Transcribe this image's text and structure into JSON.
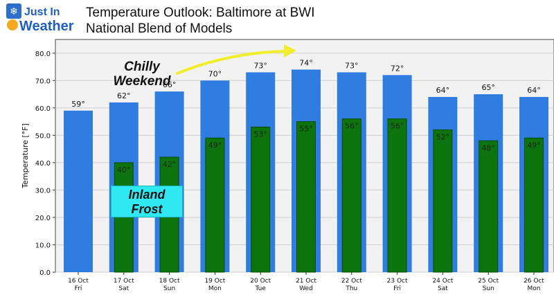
{
  "logo": {
    "line1": "Just In",
    "line2": "Weather"
  },
  "header": {
    "title": "Temperature Outlook: Baltimore at BWI",
    "subtitle": "National Blend of Models"
  },
  "annotations": {
    "chilly": [
      "Chilly",
      "Weekend"
    ],
    "frost": [
      "Inland",
      "Frost"
    ]
  },
  "colors": {
    "high": "#2f7de1",
    "low": "#0c740c",
    "plot_bg": "#f2f2f2",
    "arrow": "#f2ee2c",
    "frost_box": "#2ee8f2"
  },
  "chart_data": {
    "type": "bar",
    "ylabel": "Temperature [°F]",
    "ylim": [
      0,
      85
    ],
    "yticks": [
      "0.0",
      "10.0",
      "20.0",
      "30.0",
      "40.0",
      "50.0",
      "60.0",
      "70.0",
      "80.0"
    ],
    "grid": true,
    "categories": [
      "16 Oct",
      "17 Oct",
      "18 Oct",
      "19 Oct",
      "20 Oct",
      "21 Oct",
      "22 Oct",
      "23 Oct",
      "24 Oct",
      "25 Oct",
      "26 Oct"
    ],
    "days": [
      "Fri",
      "Sat",
      "Sun",
      "Mon",
      "Tue",
      "Wed",
      "Thu",
      "Fri",
      "Sat",
      "Sun",
      "Mon"
    ],
    "series": [
      {
        "values": [
          59,
          62,
          66,
          70,
          73,
          74,
          73,
          72,
          64,
          65,
          64
        ],
        "labels": [
          "59°",
          "62°",
          "66°",
          "70°",
          "73°",
          "74°",
          "73°",
          "72°",
          "64°",
          "65°",
          "64°"
        ]
      },
      {
        "values": [
          null,
          40,
          42,
          49,
          53,
          55,
          56,
          56,
          52,
          48,
          49
        ],
        "labels": [
          "",
          "40°",
          "42°",
          "49°",
          "53°",
          "55°",
          "56°",
          "56°",
          "52°",
          "48°",
          "49°"
        ]
      }
    ]
  }
}
